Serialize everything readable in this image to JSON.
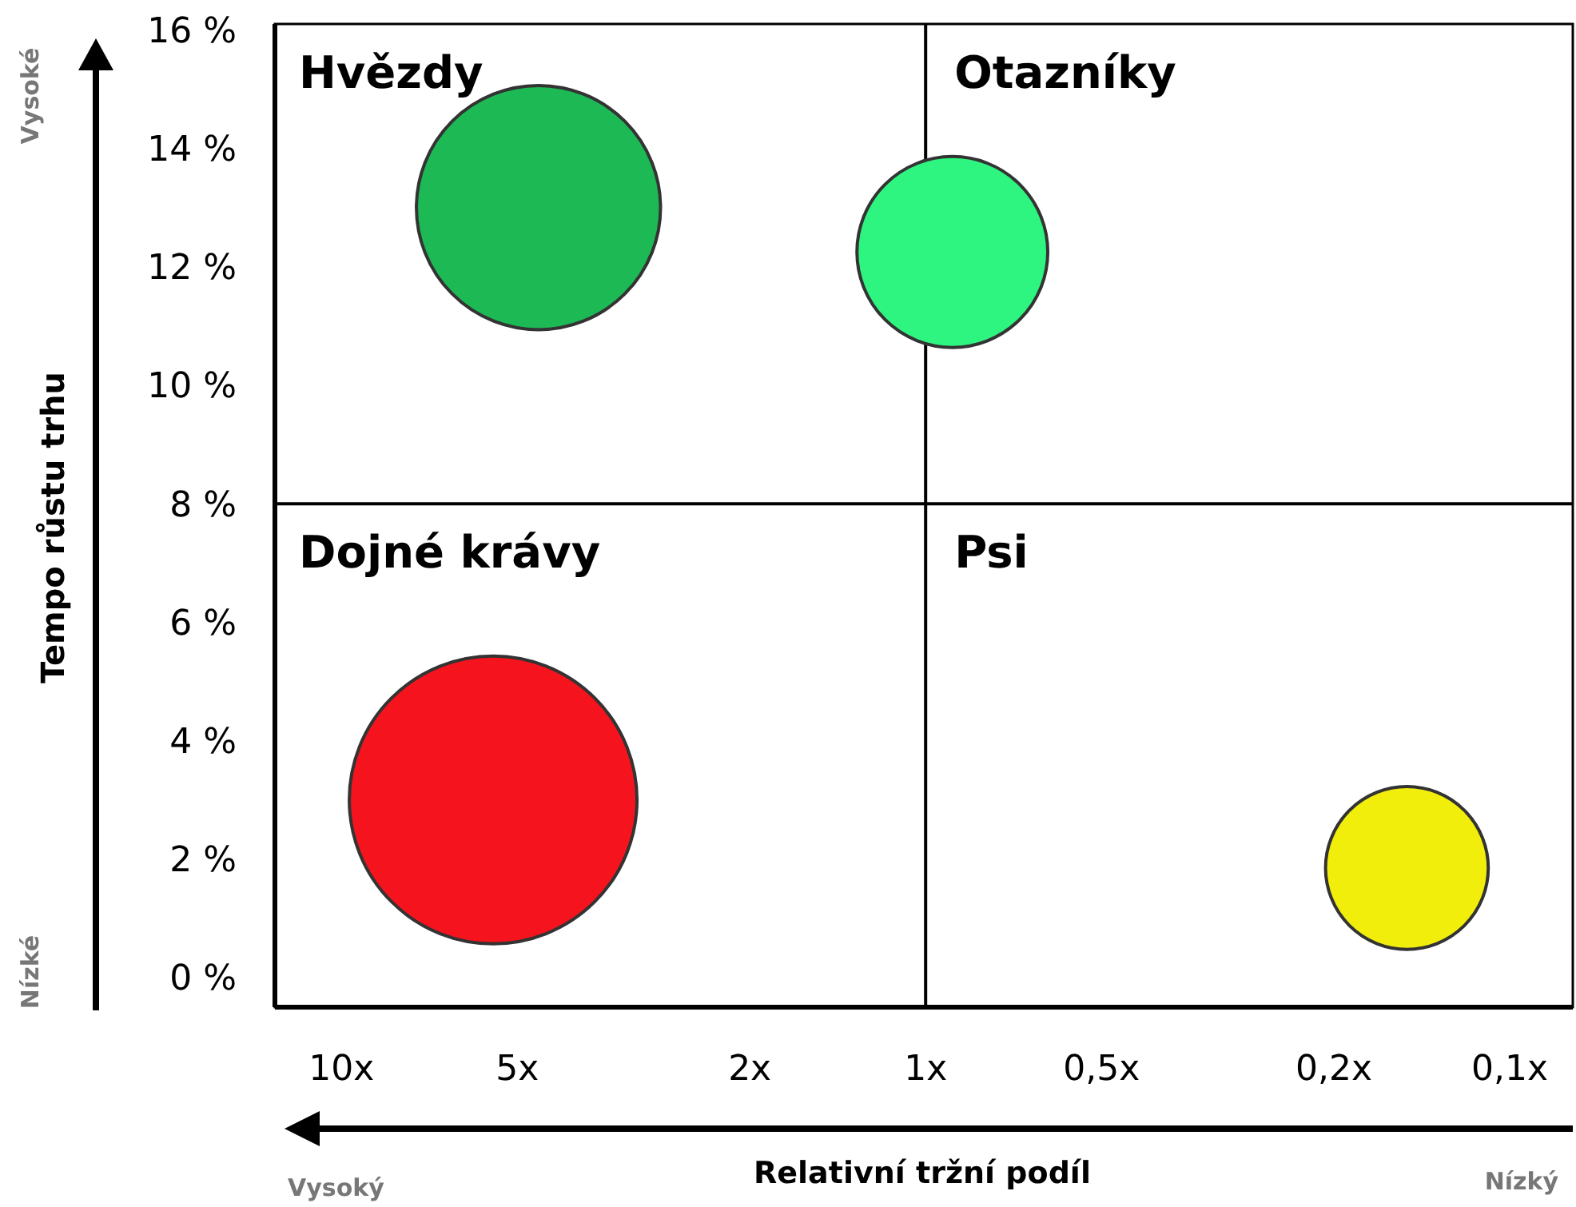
{
  "chart_data": {
    "type": "bubble",
    "xlabel": "Relativní tržní podíl",
    "ylabel": "Tempo růstu trhu",
    "x": [
      4.6,
      0.9,
      5.5,
      0.15
    ],
    "values": [
      13.0,
      12.25,
      3.0,
      1.85
    ],
    "sizes": [
      0.72,
      0.44,
      1,
      0.32
    ],
    "colors": [
      "#1db954",
      "#2ef57f",
      "#f5141e",
      "#f2ee0c"
    ],
    "log": "x",
    "xlim": [
      13,
      0.078
    ],
    "ylim": [
      -0.5,
      16.1
    ],
    "xticks": [
      {
        "value": 10,
        "label": "10x"
      },
      {
        "value": 5,
        "label": "5x"
      },
      {
        "value": 2,
        "label": "2x"
      },
      {
        "value": 1,
        "label": "1x"
      },
      {
        "value": 0.5,
        "label": "0,5x"
      },
      {
        "value": 0.2,
        "label": "0,2x"
      },
      {
        "value": 0.1,
        "label": "0,1x"
      }
    ],
    "yticks": [
      {
        "value": 0,
        "label": "0 %"
      },
      {
        "value": 2,
        "label": "2 %"
      },
      {
        "value": 4,
        "label": "4 %"
      },
      {
        "value": 6,
        "label": "6 %"
      },
      {
        "value": 8,
        "label": "8 %"
      },
      {
        "value": 10,
        "label": "10 %"
      },
      {
        "value": 12,
        "label": "12 %"
      },
      {
        "value": 14,
        "label": "14 %"
      },
      {
        "value": 16,
        "label": "16 %"
      }
    ],
    "ref_lines": [
      {
        "axis": "x",
        "value": 1
      },
      {
        "axis": "y",
        "value": 8
      }
    ],
    "annotations": [
      "Hvězdy",
      "Otazníky",
      "Dojné krávy",
      "Psi",
      "Vysoké",
      "Nízké",
      "Vysoký",
      "Nízký"
    ],
    "grid": false
  }
}
